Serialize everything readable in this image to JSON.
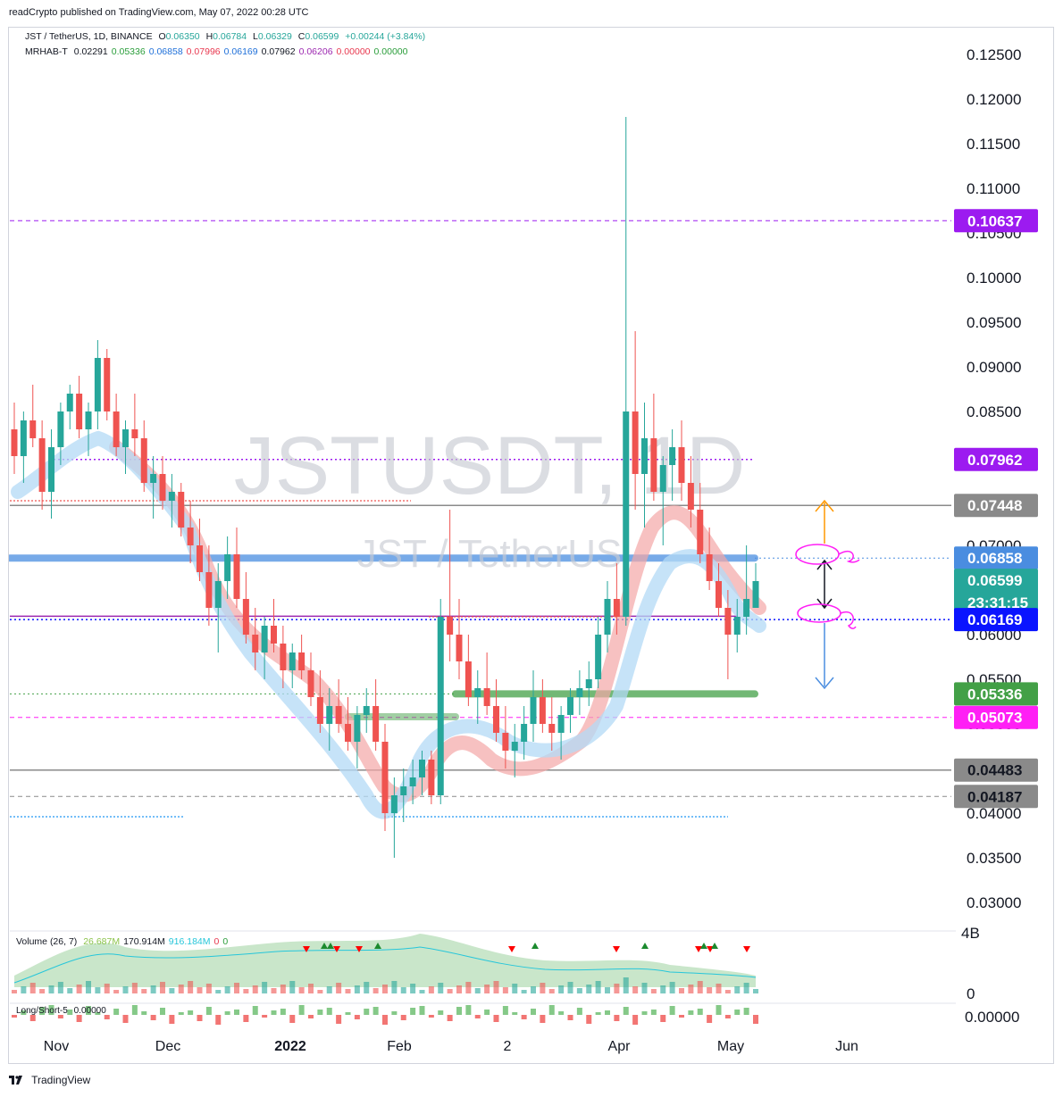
{
  "publisher": "readCrypto published on TradingView.com, May 07, 2022 00:28 UTC",
  "legend": {
    "symbol": "JST / TetherUS, 1D, BINANCE",
    "open_label": "O",
    "open": "0.06350",
    "high_label": "H",
    "high": "0.06784",
    "low_label": "L",
    "low": "0.06329",
    "close_label": "C",
    "close": "0.06599",
    "change": "+0.00244 (+3.84%)",
    "indicator_name": "MRHAB-T",
    "indicator_values": [
      {
        "value": "0.02291",
        "color": "#131722"
      },
      {
        "value": "0.05336",
        "color": "#2a9d3a"
      },
      {
        "value": "0.06858",
        "color": "#1e6fd9"
      },
      {
        "value": "0.07996",
        "color": "#e8384f"
      },
      {
        "value": "0.06169",
        "color": "#1e6fd9"
      },
      {
        "value": "0.07962",
        "color": "#131722"
      },
      {
        "value": "0.06206",
        "color": "#9c27b0"
      },
      {
        "value": "0.00000",
        "color": "#e8384f"
      },
      {
        "value": "0.00000",
        "color": "#2a9d3a"
      }
    ]
  },
  "watermark": {
    "line1": "JSTUSDT, 1D",
    "line2": "JST / TetherUS"
  },
  "price_axis": {
    "ticks": [
      "0.12500",
      "0.12000",
      "0.11500",
      "0.11000",
      "0.10500",
      "0.10000",
      "0.09500",
      "0.09000",
      "0.08500",
      "0.08000",
      "0.07500",
      "0.07000",
      "0.06500",
      "0.06000",
      "0.05500",
      "0.05000",
      "0.04500",
      "0.04000",
      "0.03500",
      "0.03000"
    ]
  },
  "price_tags": [
    {
      "value": "0.10637",
      "bg": "#9c1bf0",
      "fg": "#ffffff"
    },
    {
      "value": "0.07962",
      "bg": "#9c1bf0",
      "fg": "#ffffff"
    },
    {
      "value": "0.07448",
      "bg": "#8a8a8a",
      "fg": "#ffffff"
    },
    {
      "value": "0.06858",
      "bg": "#4a8de0",
      "fg": "#ffffff"
    },
    {
      "value": "0.06599",
      "bg": "#26a69a",
      "fg": "#ffffff",
      "sub": "23:31:15"
    },
    {
      "value": "0.06169",
      "bg": "#0a14ff",
      "fg": "#ffffff"
    },
    {
      "value": "0.05336",
      "bg": "#43a047",
      "fg": "#ffffff"
    },
    {
      "value": "0.05073",
      "bg": "#ff1ff5",
      "fg": "#ffffff"
    },
    {
      "value": "0.04483",
      "bg": "#8a8a8a",
      "fg": "#131722"
    },
    {
      "value": "0.04187",
      "bg": "#8a8a8a",
      "fg": "#131722"
    }
  ],
  "x_axis": {
    "labels": [
      "Nov",
      "Dec",
      "2022",
      "Feb",
      "2",
      "Apr",
      "May",
      "Jun"
    ]
  },
  "volume_pane": {
    "legend_name": "Volume (26, 7)",
    "legend_values": [
      {
        "value": "26.687M",
        "color": "#8bc34a"
      },
      {
        "value": "170.914M",
        "color": "#131722"
      },
      {
        "value": "916.184M",
        "color": "#26c6da"
      },
      {
        "value": "0",
        "color": "#e8384f"
      },
      {
        "value": "0",
        "color": "#2a9d3a"
      }
    ],
    "axis_top": "4B",
    "axis_bottom": "0"
  },
  "longshort_pane": {
    "legend": "Long/Short-5",
    "value": "0.00000",
    "axis": "0.00000"
  },
  "footer": "TradingView",
  "colors": {
    "up": "#26a69a",
    "down": "#ef5350",
    "wick_up": "#26a69a",
    "wick_down": "#ef5350"
  },
  "chart_data": {
    "type": "candlestick",
    "title": "JSTUSDT, 1D",
    "x_labels": [
      "Nov",
      "Dec",
      "2022",
      "Feb",
      "2",
      "Apr",
      "May",
      "Jun"
    ],
    "y_range": [
      0.028,
      0.128
    ],
    "key_levels": [
      {
        "price": 0.10637,
        "color": "#9c1bf0",
        "style": "dashed"
      },
      {
        "price": 0.07962,
        "color": "#9c1bf0",
        "style": "dotted"
      },
      {
        "price": 0.07448,
        "color": "#8a8a8a",
        "style": "solid"
      },
      {
        "price": 0.06858,
        "color": "#4a8de0",
        "style": "thick"
      },
      {
        "price": 0.06206,
        "color": "#9c27b0",
        "style": "solid"
      },
      {
        "price": 0.06169,
        "color": "#0a14ff",
        "style": "dotted"
      },
      {
        "price": 0.05336,
        "color": "#43a047",
        "style": "thick"
      },
      {
        "price": 0.05073,
        "color": "#ff1ff5",
        "style": "dashed"
      },
      {
        "price": 0.04483,
        "color": "#8a8a8a",
        "style": "solid"
      },
      {
        "price": 0.04187,
        "color": "#8a8a8a",
        "style": "dashed"
      }
    ],
    "candles_approx": [
      [
        0.083,
        0.086,
        0.078,
        0.08
      ],
      [
        0.08,
        0.085,
        0.077,
        0.084
      ],
      [
        0.084,
        0.088,
        0.081,
        0.082
      ],
      [
        0.082,
        0.084,
        0.074,
        0.076
      ],
      [
        0.076,
        0.083,
        0.073,
        0.081
      ],
      [
        0.081,
        0.086,
        0.079,
        0.085
      ],
      [
        0.085,
        0.088,
        0.083,
        0.087
      ],
      [
        0.087,
        0.089,
        0.082,
        0.083
      ],
      [
        0.083,
        0.086,
        0.08,
        0.085
      ],
      [
        0.085,
        0.093,
        0.083,
        0.091
      ],
      [
        0.091,
        0.092,
        0.084,
        0.085
      ],
      [
        0.085,
        0.087,
        0.08,
        0.081
      ],
      [
        0.081,
        0.084,
        0.078,
        0.083
      ],
      [
        0.083,
        0.087,
        0.08,
        0.082
      ],
      [
        0.082,
        0.084,
        0.076,
        0.077
      ],
      [
        0.077,
        0.08,
        0.073,
        0.078
      ],
      [
        0.078,
        0.08,
        0.074,
        0.075
      ],
      [
        0.075,
        0.078,
        0.072,
        0.076
      ],
      [
        0.076,
        0.077,
        0.071,
        0.072
      ],
      [
        0.072,
        0.075,
        0.068,
        0.07
      ],
      [
        0.07,
        0.073,
        0.066,
        0.067
      ],
      [
        0.067,
        0.07,
        0.061,
        0.063
      ],
      [
        0.063,
        0.068,
        0.058,
        0.066
      ],
      [
        0.066,
        0.071,
        0.064,
        0.069
      ],
      [
        0.069,
        0.072,
        0.063,
        0.064
      ],
      [
        0.064,
        0.067,
        0.059,
        0.06
      ],
      [
        0.06,
        0.063,
        0.056,
        0.058
      ],
      [
        0.058,
        0.062,
        0.055,
        0.061
      ],
      [
        0.061,
        0.064,
        0.058,
        0.059
      ],
      [
        0.059,
        0.061,
        0.054,
        0.056
      ],
      [
        0.056,
        0.059,
        0.054,
        0.058
      ],
      [
        0.058,
        0.06,
        0.055,
        0.056
      ],
      [
        0.056,
        0.058,
        0.052,
        0.053
      ],
      [
        0.053,
        0.056,
        0.049,
        0.05
      ],
      [
        0.05,
        0.054,
        0.047,
        0.052
      ],
      [
        0.052,
        0.055,
        0.049,
        0.05
      ],
      [
        0.05,
        0.053,
        0.047,
        0.048
      ],
      [
        0.048,
        0.052,
        0.045,
        0.051
      ],
      [
        0.051,
        0.054,
        0.049,
        0.052
      ],
      [
        0.052,
        0.055,
        0.047,
        0.048
      ],
      [
        0.048,
        0.05,
        0.038,
        0.04
      ],
      [
        0.04,
        0.044,
        0.035,
        0.042
      ],
      [
        0.042,
        0.045,
        0.039,
        0.043
      ],
      [
        0.043,
        0.046,
        0.041,
        0.044
      ],
      [
        0.044,
        0.047,
        0.042,
        0.046
      ],
      [
        0.046,
        0.047,
        0.041,
        0.042
      ],
      [
        0.042,
        0.064,
        0.041,
        0.062
      ],
      [
        0.062,
        0.074,
        0.057,
        0.06
      ],
      [
        0.06,
        0.064,
        0.055,
        0.057
      ],
      [
        0.057,
        0.06,
        0.052,
        0.053
      ],
      [
        0.053,
        0.056,
        0.05,
        0.054
      ],
      [
        0.054,
        0.058,
        0.051,
        0.052
      ],
      [
        0.052,
        0.055,
        0.048,
        0.049
      ],
      [
        0.049,
        0.052,
        0.045,
        0.047
      ],
      [
        0.047,
        0.05,
        0.044,
        0.048
      ],
      [
        0.048,
        0.052,
        0.046,
        0.05
      ],
      [
        0.05,
        0.056,
        0.048,
        0.053
      ],
      [
        0.053,
        0.055,
        0.049,
        0.05
      ],
      [
        0.05,
        0.053,
        0.047,
        0.049
      ],
      [
        0.049,
        0.052,
        0.046,
        0.051
      ],
      [
        0.051,
        0.054,
        0.049,
        0.053
      ],
      [
        0.053,
        0.056,
        0.051,
        0.054
      ],
      [
        0.054,
        0.057,
        0.052,
        0.055
      ],
      [
        0.055,
        0.062,
        0.054,
        0.06
      ],
      [
        0.06,
        0.066,
        0.058,
        0.064
      ],
      [
        0.064,
        0.068,
        0.06,
        0.062
      ],
      [
        0.062,
        0.118,
        0.061,
        0.085
      ],
      [
        0.085,
        0.094,
        0.074,
        0.078
      ],
      [
        0.078,
        0.086,
        0.072,
        0.082
      ],
      [
        0.082,
        0.087,
        0.075,
        0.076
      ],
      [
        0.076,
        0.08,
        0.07,
        0.079
      ],
      [
        0.079,
        0.083,
        0.075,
        0.081
      ],
      [
        0.081,
        0.084,
        0.075,
        0.077
      ],
      [
        0.077,
        0.08,
        0.072,
        0.074
      ],
      [
        0.074,
        0.077,
        0.068,
        0.069
      ],
      [
        0.069,
        0.072,
        0.065,
        0.066
      ],
      [
        0.066,
        0.068,
        0.062,
        0.063
      ],
      [
        0.063,
        0.065,
        0.055,
        0.06
      ],
      [
        0.06,
        0.064,
        0.058,
        0.062
      ],
      [
        0.062,
        0.07,
        0.06,
        0.064
      ],
      [
        0.063,
        0.068,
        0.063,
        0.066
      ]
    ]
  }
}
